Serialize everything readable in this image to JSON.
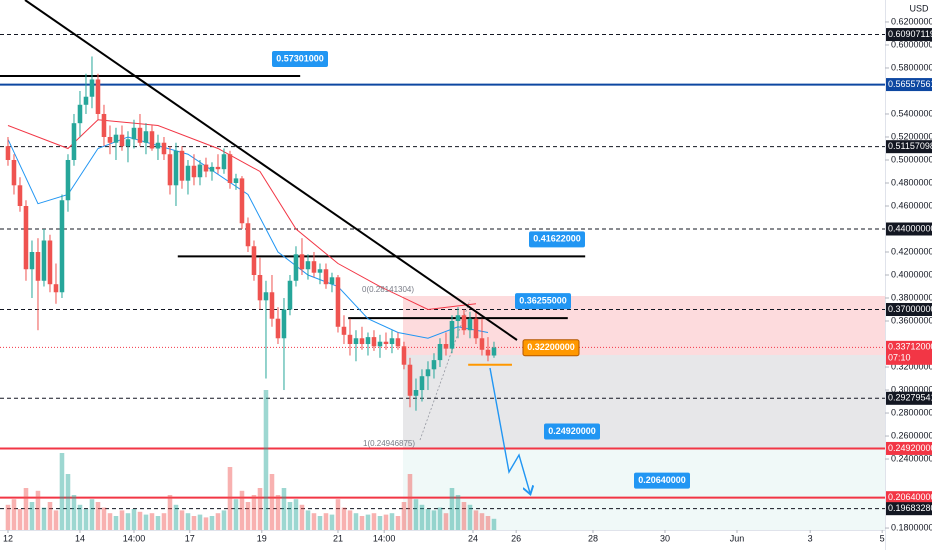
{
  "chart_data": {
    "type": "candlestick",
    "currency": "USD",
    "xlim": [
      -1.33,
      146.17
    ],
    "ylim": [
      0.1783,
      0.6391
    ],
    "vlim": [
      0,
      100
    ],
    "up_color": "#26a69a",
    "down_color": "#ef5350",
    "xticks": [
      {
        "value": 0,
        "label": "12"
      },
      {
        "value": 12,
        "label": "14"
      },
      {
        "value": 21,
        "label": "14:00"
      },
      {
        "value": 30.3,
        "label": "17"
      },
      {
        "value": 42.3,
        "label": "19"
      },
      {
        "value": 55,
        "label": "21"
      },
      {
        "value": 62.7,
        "label": "14:00"
      },
      {
        "value": 77.5,
        "label": "24"
      },
      {
        "value": 84.7,
        "label": "26"
      },
      {
        "value": 97.5,
        "label": "28"
      },
      {
        "value": 109.5,
        "label": "30"
      },
      {
        "value": 121.5,
        "label": "Jun"
      },
      {
        "value": 133.7,
        "label": "3"
      },
      {
        "value": 145.7,
        "label": "5"
      }
    ],
    "yticks": [
      {
        "value": 0.62,
        "label": "0.62000000"
      },
      {
        "value": 0.6,
        "label": "0.60000000"
      },
      {
        "value": 0.58,
        "label": "0.58000000"
      },
      {
        "value": 0.54,
        "label": "0.54000000"
      },
      {
        "value": 0.52,
        "label": "0.52000000"
      },
      {
        "value": 0.5,
        "label": "0.50000000"
      },
      {
        "value": 0.48,
        "label": "0.48000000"
      },
      {
        "value": 0.46,
        "label": "0.46000000"
      },
      {
        "value": 0.42,
        "label": "0.42000000"
      },
      {
        "value": 0.4,
        "label": "0.40000000"
      },
      {
        "value": 0.38,
        "label": "0.38000000"
      },
      {
        "value": 0.36,
        "label": "0.36000000"
      },
      {
        "value": 0.32,
        "label": "0.32000000"
      },
      {
        "value": 0.3,
        "label": "0.30000000"
      },
      {
        "value": 0.28,
        "label": "0.28000000"
      },
      {
        "value": 0.26,
        "label": "0.26000000"
      },
      {
        "value": 0.24,
        "label": "0.24000000"
      },
      {
        "value": 0.18,
        "label": "0.18000000"
      }
    ],
    "candles": [
      [
        0.512,
        0.52,
        0.495,
        0.5
      ],
      [
        0.5,
        0.505,
        0.47,
        0.478
      ],
      [
        0.478,
        0.485,
        0.455,
        0.46
      ],
      [
        0.46,
        0.465,
        0.395,
        0.405
      ],
      [
        0.405,
        0.43,
        0.38,
        0.42
      ],
      [
        0.42,
        0.432,
        0.352,
        0.395
      ],
      [
        0.395,
        0.44,
        0.39,
        0.43
      ],
      [
        0.43,
        0.435,
        0.385,
        0.392
      ],
      [
        0.392,
        0.41,
        0.375,
        0.385
      ],
      [
        0.385,
        0.47,
        0.38,
        0.465
      ],
      [
        0.465,
        0.505,
        0.455,
        0.5
      ],
      [
        0.5,
        0.54,
        0.495,
        0.532
      ],
      [
        0.532,
        0.56,
        0.52,
        0.548
      ],
      [
        0.548,
        0.575,
        0.54,
        0.555
      ],
      [
        0.555,
        0.59,
        0.545,
        0.57
      ],
      [
        0.57,
        0.575,
        0.535,
        0.54
      ],
      [
        0.54,
        0.548,
        0.512,
        0.52
      ],
      [
        0.52,
        0.53,
        0.505,
        0.515
      ],
      [
        0.515,
        0.528,
        0.5,
        0.522
      ],
      [
        0.522,
        0.53,
        0.508,
        0.512
      ],
      [
        0.512,
        0.525,
        0.498,
        0.518
      ],
      [
        0.518,
        0.535,
        0.51,
        0.528
      ],
      [
        0.528,
        0.54,
        0.512,
        0.515
      ],
      [
        0.515,
        0.532,
        0.505,
        0.525
      ],
      [
        0.525,
        0.53,
        0.508,
        0.51
      ],
      [
        0.51,
        0.522,
        0.5,
        0.515
      ],
      [
        0.515,
        0.52,
        0.5,
        0.505
      ],
      [
        0.505,
        0.512,
        0.47,
        0.478
      ],
      [
        0.478,
        0.515,
        0.46,
        0.508
      ],
      [
        0.508,
        0.512,
        0.475,
        0.482
      ],
      [
        0.482,
        0.5,
        0.47,
        0.495
      ],
      [
        0.495,
        0.505,
        0.478,
        0.485
      ],
      [
        0.485,
        0.5,
        0.478,
        0.496
      ],
      [
        0.496,
        0.502,
        0.485,
        0.49
      ],
      [
        0.49,
        0.498,
        0.482,
        0.494
      ],
      [
        0.494,
        0.505,
        0.488,
        0.492
      ],
      [
        0.492,
        0.51,
        0.488,
        0.505
      ],
      [
        0.505,
        0.508,
        0.475,
        0.48
      ],
      [
        0.48,
        0.488,
        0.474,
        0.484
      ],
      [
        0.484,
        0.486,
        0.44,
        0.445
      ],
      [
        0.445,
        0.45,
        0.42,
        0.425
      ],
      [
        0.425,
        0.43,
        0.395,
        0.4
      ],
      [
        0.4,
        0.415,
        0.37,
        0.378
      ],
      [
        0.378,
        0.395,
        0.31,
        0.385
      ],
      [
        0.385,
        0.4,
        0.355,
        0.362
      ],
      [
        0.362,
        0.372,
        0.34,
        0.345
      ],
      [
        0.345,
        0.38,
        0.3,
        0.37
      ],
      [
        0.37,
        0.4,
        0.365,
        0.395
      ],
      [
        0.395,
        0.425,
        0.39,
        0.418
      ],
      [
        0.418,
        0.432,
        0.4,
        0.405
      ],
      [
        0.405,
        0.418,
        0.396,
        0.412
      ],
      [
        0.412,
        0.42,
        0.398,
        0.402
      ],
      [
        0.402,
        0.41,
        0.392,
        0.405
      ],
      [
        0.405,
        0.41,
        0.388,
        0.392
      ],
      [
        0.392,
        0.402,
        0.385,
        0.398
      ],
      [
        0.398,
        0.4,
        0.35,
        0.355
      ],
      [
        0.355,
        0.365,
        0.34,
        0.348
      ],
      [
        0.348,
        0.362,
        0.33,
        0.34
      ],
      [
        0.34,
        0.352,
        0.325,
        0.345
      ],
      [
        0.345,
        0.355,
        0.335,
        0.34
      ],
      [
        0.34,
        0.35,
        0.33,
        0.346
      ],
      [
        0.346,
        0.352,
        0.334,
        0.338
      ],
      [
        0.338,
        0.348,
        0.328,
        0.342
      ],
      [
        0.342,
        0.35,
        0.335,
        0.34
      ],
      [
        0.34,
        0.352,
        0.332,
        0.345
      ],
      [
        0.345,
        0.35,
        0.335,
        0.338
      ],
      [
        0.338,
        0.342,
        0.318,
        0.322
      ],
      [
        0.322,
        0.328,
        0.285,
        0.295
      ],
      [
        0.295,
        0.31,
        0.282,
        0.3
      ],
      [
        0.3,
        0.318,
        0.29,
        0.312
      ],
      [
        0.312,
        0.325,
        0.3,
        0.318
      ],
      [
        0.318,
        0.332,
        0.31,
        0.326
      ],
      [
        0.326,
        0.345,
        0.32,
        0.34
      ],
      [
        0.34,
        0.35,
        0.33,
        0.336
      ],
      [
        0.336,
        0.365,
        0.332,
        0.36
      ],
      [
        0.36,
        0.372,
        0.345,
        0.365
      ],
      [
        0.365,
        0.37,
        0.348,
        0.352
      ],
      [
        0.352,
        0.368,
        0.345,
        0.362
      ],
      [
        0.362,
        0.368,
        0.34,
        0.345
      ],
      [
        0.345,
        0.362,
        0.33,
        0.335
      ],
      [
        0.335,
        0.346,
        0.325,
        0.33
      ],
      [
        0.33,
        0.342,
        0.328,
        0.337
      ]
    ],
    "volumes": [
      18,
      22,
      15,
      30,
      20,
      28,
      16,
      20,
      14,
      55,
      40,
      25,
      18,
      15,
      22,
      20,
      16,
      12,
      10,
      14,
      12,
      15,
      13,
      11,
      12,
      10,
      12,
      25,
      18,
      14,
      12,
      10,
      11,
      9,
      10,
      12,
      14,
      45,
      22,
      28,
      20,
      25,
      30,
      100,
      40,
      25,
      30,
      20,
      22,
      18,
      14,
      12,
      10,
      12,
      11,
      22,
      16,
      14,
      12,
      10,
      11,
      12,
      10,
      11,
      12,
      10,
      20,
      40,
      22,
      18,
      15,
      14,
      16,
      12,
      30,
      25,
      20,
      18,
      14,
      12,
      10,
      8
    ],
    "moving_averages": [
      {
        "color": "#2196f3",
        "x": [
          0,
          5,
          10,
          15,
          20,
          30,
          40,
          45,
          50,
          55,
          60,
          65,
          70,
          75,
          80
        ],
        "values": [
          0.518,
          0.462,
          0.47,
          0.51,
          0.52,
          0.505,
          0.47,
          0.42,
          0.4,
          0.39,
          0.362,
          0.35,
          0.345,
          0.355,
          0.35
        ]
      },
      {
        "color": "#f23645",
        "x": [
          0,
          10,
          15,
          25,
          35,
          42,
          48,
          55,
          62,
          70,
          78
        ],
        "values": [
          0.53,
          0.51,
          0.535,
          0.53,
          0.51,
          0.49,
          0.44,
          0.41,
          0.39,
          0.37,
          0.375
        ]
      }
    ],
    "axis_marks": [
      {
        "value": 0.60907119,
        "label": "0.60907119",
        "color": "#131722",
        "line": "dashed"
      },
      {
        "value": 0.56557561,
        "label": "0.56557561",
        "color": "#0d47a1",
        "line": "solid"
      },
      {
        "value": 0.51157098,
        "label": "0.51157098",
        "color": "#131722",
        "line": "dashed"
      },
      {
        "value": 0.44,
        "label": "0.44000000",
        "color": "#131722",
        "line": "dashed"
      },
      {
        "value": 0.37,
        "label": "0.37000000",
        "color": "#131722",
        "line": "dashed"
      },
      {
        "value": 0.33712,
        "label": "0.33712000",
        "color": "#f23645",
        "line": "dotted",
        "countdown": "07:10"
      },
      {
        "value": 0.29279541,
        "label": "0.29279541",
        "color": "#131722",
        "line": "dashed"
      },
      {
        "value": 0.2492,
        "label": "0.24920000",
        "color": "#f23645",
        "line": "solid"
      },
      {
        "value": 0.2064,
        "label": "0.20640000",
        "color": "#f23645",
        "line": "solid"
      },
      {
        "value": 0.1968328,
        "label": "0.19683280",
        "color": "#131722",
        "line": "dashed"
      }
    ],
    "callouts": [
      {
        "value": 0.57301,
        "label": "0.57301000",
        "color": "#2196f3",
        "x": [
          -1.33,
          48.7
        ]
      },
      {
        "value": 0.41622,
        "label": "0.41622000",
        "color": "#2196f3",
        "x": [
          28.3,
          96.2
        ]
      },
      {
        "value": 0.36255,
        "label": "0.36255000",
        "color": "#2196f3",
        "x": [
          56.7,
          93.3
        ]
      },
      {
        "value": 0.322,
        "label": "0.32200000",
        "color": "#ff9800",
        "x": [
          76.7,
          84
        ]
      },
      {
        "value": 0.2492,
        "label": "0.24920000",
        "color": "#2196f3"
      },
      {
        "value": 0.2064,
        "label": "0.20640000",
        "color": "#2196f3"
      }
    ],
    "annotations": [
      "0(0.28141304)",
      "1(0.24946875)"
    ]
  }
}
